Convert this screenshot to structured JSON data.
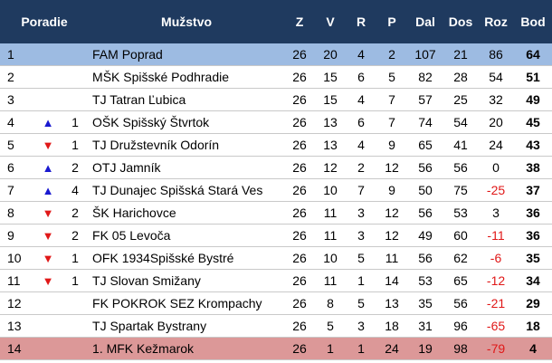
{
  "header": {
    "poradie": "Poradie",
    "muzstvo": "Mužstvo",
    "z": "Z",
    "v": "V",
    "r": "R",
    "p": "P",
    "dal": "Dal",
    "dos": "Dos",
    "roz": "Roz",
    "bod": "Bod"
  },
  "colors": {
    "header_bg": "#1f3a5f",
    "first_row": "#9dbbe2",
    "last_row": "#dc9898",
    "up_arrow": "#1a1ad0",
    "down_arrow": "#e01818",
    "negative": "#e01818"
  },
  "rows": [
    {
      "pos": "1",
      "move": "",
      "change": "",
      "team": "FAM Poprad",
      "z": "26",
      "v": "20",
      "r": "4",
      "p": "2",
      "dal": "107",
      "dos": "21",
      "roz": "86",
      "bod": "64"
    },
    {
      "pos": "2",
      "move": "",
      "change": "",
      "team": "MŠK Spišské Podhradie",
      "z": "26",
      "v": "15",
      "r": "6",
      "p": "5",
      "dal": "82",
      "dos": "28",
      "roz": "54",
      "bod": "51"
    },
    {
      "pos": "3",
      "move": "",
      "change": "",
      "team": "TJ Tatran Ľubica",
      "z": "26",
      "v": "15",
      "r": "4",
      "p": "7",
      "dal": "57",
      "dos": "25",
      "roz": "32",
      "bod": "49"
    },
    {
      "pos": "4",
      "move": "up",
      "change": "1",
      "team": "OŠK Spišský Štvrtok",
      "z": "26",
      "v": "13",
      "r": "6",
      "p": "7",
      "dal": "74",
      "dos": "54",
      "roz": "20",
      "bod": "45"
    },
    {
      "pos": "5",
      "move": "down",
      "change": "1",
      "team": "TJ Družstevník Odorín",
      "z": "26",
      "v": "13",
      "r": "4",
      "p": "9",
      "dal": "65",
      "dos": "41",
      "roz": "24",
      "bod": "43"
    },
    {
      "pos": "6",
      "move": "up",
      "change": "2",
      "team": "OTJ Jamník",
      "z": "26",
      "v": "12",
      "r": "2",
      "p": "12",
      "dal": "56",
      "dos": "56",
      "roz": "0",
      "bod": "38"
    },
    {
      "pos": "7",
      "move": "up",
      "change": "4",
      "team": "TJ Dunajec Spišská Stará Ves",
      "z": "26",
      "v": "10",
      "r": "7",
      "p": "9",
      "dal": "50",
      "dos": "75",
      "roz": "-25",
      "bod": "37"
    },
    {
      "pos": "8",
      "move": "down",
      "change": "2",
      "team": "ŠK Harichovce",
      "z": "26",
      "v": "11",
      "r": "3",
      "p": "12",
      "dal": "56",
      "dos": "53",
      "roz": "3",
      "bod": "36"
    },
    {
      "pos": "9",
      "move": "down",
      "change": "2",
      "team": "FK 05 Levoča",
      "z": "26",
      "v": "11",
      "r": "3",
      "p": "12",
      "dal": "49",
      "dos": "60",
      "roz": "-11",
      "bod": "36"
    },
    {
      "pos": "10",
      "move": "down",
      "change": "1",
      "team": "OFK 1934Spišské Bystré",
      "z": "26",
      "v": "10",
      "r": "5",
      "p": "11",
      "dal": "56",
      "dos": "62",
      "roz": "-6",
      "bod": "35"
    },
    {
      "pos": "11",
      "move": "down",
      "change": "1",
      "team": "TJ Slovan Smižany",
      "z": "26",
      "v": "11",
      "r": "1",
      "p": "14",
      "dal": "53",
      "dos": "65",
      "roz": "-12",
      "bod": "34"
    },
    {
      "pos": "12",
      "move": "",
      "change": "",
      "team": "FK POKROK SEZ Krompachy",
      "z": "26",
      "v": "8",
      "r": "5",
      "p": "13",
      "dal": "35",
      "dos": "56",
      "roz": "-21",
      "bod": "29"
    },
    {
      "pos": "13",
      "move": "",
      "change": "",
      "team": "TJ Spartak Bystrany",
      "z": "26",
      "v": "5",
      "r": "3",
      "p": "18",
      "dal": "31",
      "dos": "96",
      "roz": "-65",
      "bod": "18"
    },
    {
      "pos": "14",
      "move": "",
      "change": "",
      "team": "1. MFK Kežmarok",
      "z": "26",
      "v": "1",
      "r": "1",
      "p": "24",
      "dal": "19",
      "dos": "98",
      "roz": "-79",
      "bod": "4"
    }
  ]
}
